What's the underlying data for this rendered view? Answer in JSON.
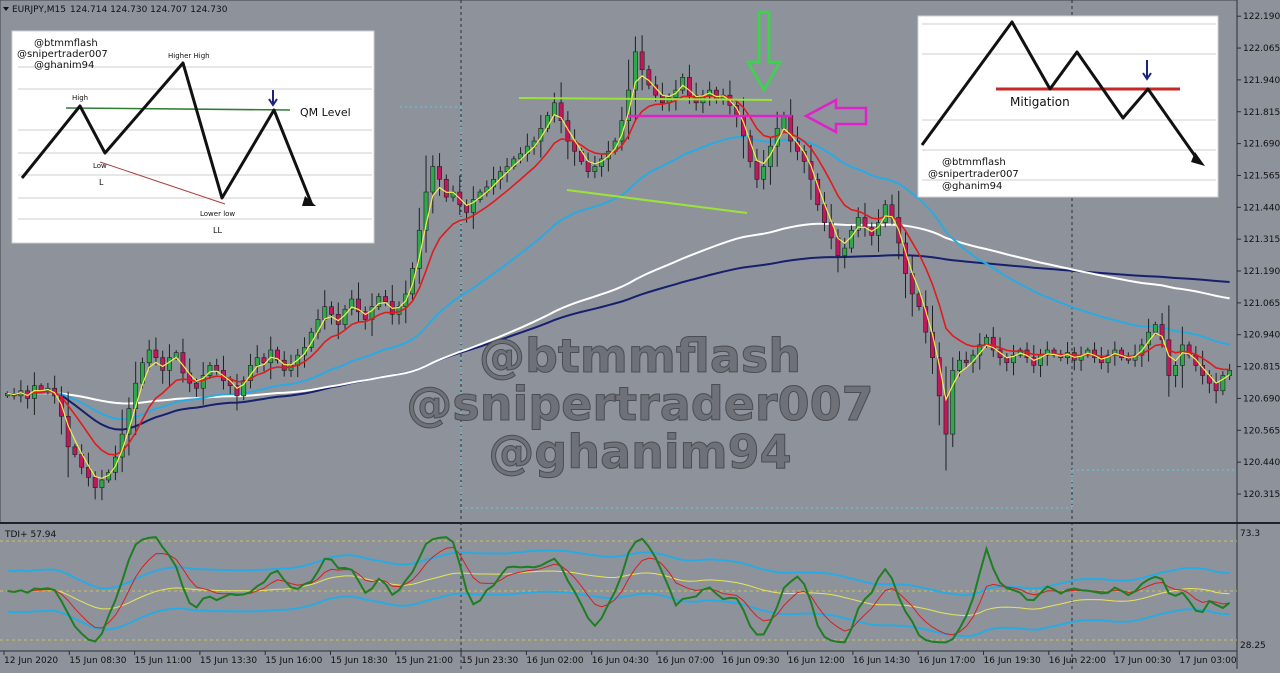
{
  "header": {
    "symbol_label": "EURJPY,M15",
    "ohlc_label": "124.714 124.730 124.707 124.730"
  },
  "watermark": {
    "lines": [
      "@btmmflash",
      "@snipertrader007",
      "@ghanim94"
    ]
  },
  "inset_left": {
    "handles": [
      "@btmmflash",
      "@snipertrader007",
      "@ghanim94"
    ],
    "labels": {
      "high": "High",
      "higher_high": "Higher High",
      "low": "Low",
      "low_short": "L",
      "lower_low": "Lower low",
      "lower_low_short": "LL",
      "qm_level": "QM Level"
    }
  },
  "inset_right": {
    "handles": [
      "@btmmflash",
      "@snipertrader007",
      "@ghanim94"
    ],
    "labels": {
      "mitigation": "Mitigation"
    }
  },
  "indicator": {
    "label": "TDI+ 57.94",
    "max_label": "73.3",
    "min_label": "28.25"
  },
  "colors": {
    "background": "#8e939b",
    "bull": "#2fa84a",
    "bear": "#c2185b",
    "ema_fast": "#f2ef4c",
    "ema_red": "#e01b1b",
    "ma_blue_light": "#2aaae2",
    "ma_navy": "#16206e",
    "ma_white": "#ffffff",
    "annot_lime": "#9be33a",
    "annot_magenta": "#e020c8",
    "annot_green_arrow": "#39d64b",
    "tdi_green": "#1f7d23",
    "tdi_red": "#d32020",
    "tdi_yellow": "#e8e45a",
    "tdi_blue": "#2aaae2"
  },
  "chart_data": {
    "type": "candlestick",
    "symbol": "EURJPY",
    "timeframe": "M15",
    "ylim": [
      120.26,
      122.23
    ],
    "y_ticks": [
      "122.190",
      "122.065",
      "121.940",
      "121.815",
      "121.690",
      "121.565",
      "121.440",
      "121.315",
      "121.190",
      "121.065",
      "120.940",
      "120.815",
      "120.690",
      "120.565",
      "120.440",
      "120.315"
    ],
    "x_ticks": [
      "12 Jun 2020",
      "15 Jun 08:30",
      "15 Jun 11:00",
      "15 Jun 13:30",
      "15 Jun 16:00",
      "15 Jun 18:30",
      "15 Jun 21:00",
      "15 Jun 23:30",
      "16 Jun 02:00",
      "16 Jun 04:30",
      "16 Jun 07:00",
      "16 Jun 09:30",
      "16 Jun 12:00",
      "16 Jun 14:30",
      "16 Jun 17:00",
      "16 Jun 19:30",
      "16 Jun 22:00",
      "17 Jun 00:30",
      "17 Jun 03:00"
    ],
    "closes": [
      120.71,
      120.7,
      120.72,
      120.69,
      120.74,
      120.72,
      120.73,
      120.7,
      120.62,
      120.5,
      120.47,
      120.42,
      120.38,
      120.34,
      120.37,
      120.4,
      120.46,
      120.55,
      120.65,
      120.75,
      120.83,
      120.88,
      120.85,
      120.8,
      120.85,
      120.87,
      120.79,
      120.75,
      120.73,
      120.78,
      120.82,
      120.8,
      120.76,
      120.74,
      120.7,
      120.76,
      120.82,
      120.85,
      120.83,
      120.88,
      120.84,
      120.8,
      120.82,
      120.86,
      120.89,
      120.95,
      121.0,
      121.05,
      121.02,
      120.98,
      121.04,
      121.08,
      121.03,
      121.0,
      121.05,
      121.09,
      121.07,
      121.02,
      121.05,
      121.1,
      121.2,
      121.35,
      121.5,
      121.6,
      121.55,
      121.48,
      121.5,
      121.45,
      121.42,
      121.47,
      121.5,
      121.52,
      121.55,
      121.58,
      121.6,
      121.63,
      121.65,
      121.68,
      121.7,
      121.75,
      121.8,
      121.85,
      121.78,
      121.7,
      121.66,
      121.62,
      121.58,
      121.6,
      121.63,
      121.66,
      121.7,
      121.78,
      121.9,
      122.05,
      121.98,
      121.92,
      121.88,
      121.85,
      121.87,
      121.9,
      121.95,
      121.88,
      121.85,
      121.88,
      121.9,
      121.86,
      121.88,
      121.84,
      121.8,
      121.72,
      121.62,
      121.55,
      121.6,
      121.68,
      121.75,
      121.8,
      121.7,
      121.66,
      121.62,
      121.55,
      121.45,
      121.38,
      121.32,
      121.25,
      121.28,
      121.35,
      121.4,
      121.36,
      121.33,
      121.38,
      121.45,
      121.4,
      121.3,
      121.18,
      121.1,
      121.05,
      120.95,
      120.85,
      120.7,
      120.55,
      120.8,
      120.84,
      120.83,
      120.86,
      120.9,
      120.93,
      120.88,
      120.85,
      120.83,
      120.86,
      120.88,
      120.85,
      120.82,
      120.86,
      120.88,
      120.86,
      120.85,
      120.87,
      120.84,
      120.86,
      120.88,
      120.85,
      120.83,
      120.86,
      120.88,
      120.85,
      120.84,
      120.86,
      120.9,
      120.95,
      120.98,
      120.92,
      120.78,
      120.82,
      120.9,
      120.86,
      120.82,
      120.78,
      120.75,
      120.72,
      120.78,
      120.8
    ],
    "annotations": {
      "inset_left": "QM Level",
      "inset_right": "Mitigation"
    },
    "indicator": {
      "name": "TDI+",
      "value": 57.94,
      "ylim": [
        28.25,
        73.3
      ]
    }
  }
}
